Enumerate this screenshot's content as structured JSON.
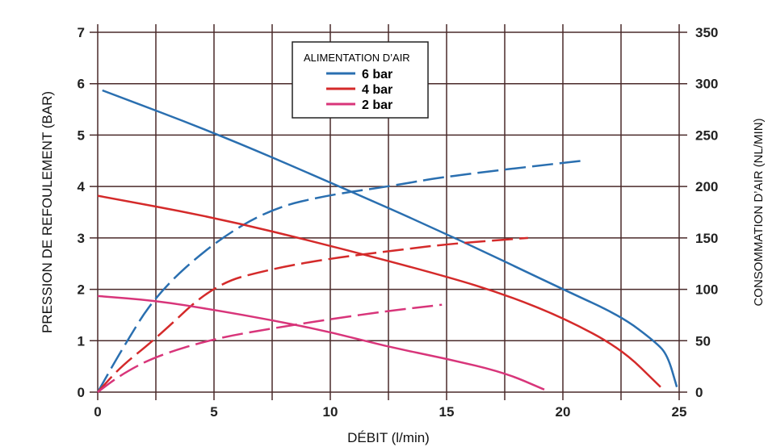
{
  "chart_data": {
    "type": "line",
    "xlabel": "DÉBIT (l/min)",
    "ylabel": "PRESSION DE REFOULEMENT (BAR)",
    "y2label": "CONSOMMATION D’AIR (NL/MIN)",
    "xlim": [
      0,
      25
    ],
    "ylim": [
      0,
      7
    ],
    "y2lim": [
      0,
      350
    ],
    "xticks": [
      "0",
      "5",
      "10",
      "15",
      "20",
      "25"
    ],
    "yticks": [
      "0",
      "1",
      "2",
      "3",
      "4",
      "5",
      "6",
      "7"
    ],
    "y2ticks": [
      "0",
      "50",
      "100",
      "150",
      "200",
      "250",
      "300",
      "350"
    ],
    "grid": true,
    "legend": {
      "title": "ALIMENTATION D’AIR",
      "placement": "top-center",
      "entries": [
        "6 bar",
        "4 bar",
        "2 bar"
      ]
    },
    "series": [
      {
        "name": "6 bar",
        "color": "#2a6fb0",
        "axis": "left",
        "style": "solid",
        "x": [
          0.2,
          5,
          10,
          15,
          20,
          22.5,
          24,
          24.5,
          24.9
        ],
        "y": [
          5.87,
          5.05,
          4.08,
          3.08,
          2.0,
          1.48,
          0.97,
          0.72,
          0.1
        ]
      },
      {
        "name": "6 bar",
        "color": "#2a6fb0",
        "axis": "right",
        "style": "dashed",
        "x": [
          0,
          1,
          2.5,
          5,
          7.5,
          10,
          12.5,
          15,
          20.8
        ],
        "y": [
          0,
          40,
          95,
          146,
          179,
          192,
          200,
          210,
          225
        ]
      },
      {
        "name": "4 bar",
        "color": "#d42a2a",
        "axis": "left",
        "style": "solid",
        "x": [
          0,
          5,
          10,
          15,
          17.5,
          20,
          22.5,
          24.2
        ],
        "y": [
          3.82,
          3.4,
          2.85,
          2.25,
          1.9,
          1.45,
          0.85,
          0.1
        ]
      },
      {
        "name": "4 bar",
        "color": "#d42a2a",
        "axis": "right",
        "style": "dashed",
        "x": [
          0,
          1,
          2.5,
          5,
          7.5,
          10,
          12.5,
          15,
          18.5
        ],
        "y": [
          0,
          25,
          52,
          105,
          120,
          130,
          137,
          144,
          150
        ]
      },
      {
        "name": "2 bar",
        "color": "#d8357a",
        "axis": "left",
        "style": "solid",
        "x": [
          0,
          2.5,
          5,
          7.5,
          10,
          12.5,
          15,
          17.5,
          19.2
        ],
        "y": [
          1.87,
          1.78,
          1.6,
          1.4,
          1.17,
          0.88,
          0.65,
          0.38,
          0.05
        ]
      },
      {
        "name": "2 bar",
        "color": "#d8357a",
        "axis": "right",
        "style": "dashed",
        "x": [
          0,
          1,
          2.5,
          5,
          7.5,
          10,
          12.5,
          14.8
        ],
        "y": [
          0,
          17,
          35,
          52,
          62,
          71,
          79,
          85
        ]
      }
    ]
  }
}
